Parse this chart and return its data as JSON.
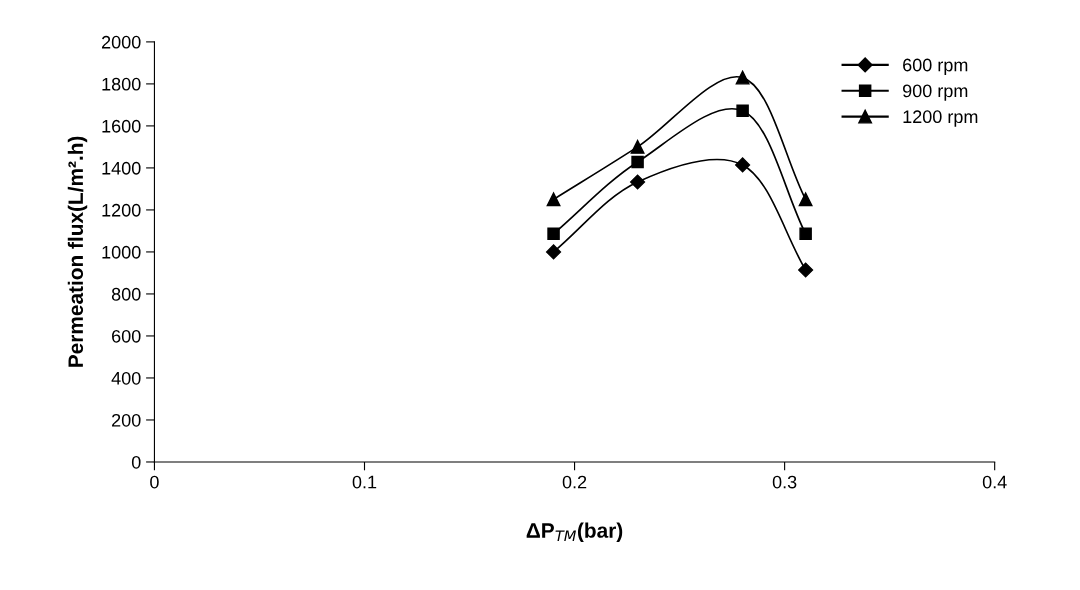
{
  "chart_data": {
    "type": "line",
    "xlabel": "ΔP$_{TM}$(bar)",
    "ylabel": "Permeation flux(L/m².h)",
    "x": [
      0.19,
      0.23,
      0.28,
      0.31
    ],
    "series": [
      {
        "name": "600 rpm",
        "color": "#000000",
        "marker": "diamond",
        "values": [
          1000,
          1333,
          1414,
          914
        ]
      },
      {
        "name": "900 rpm",
        "color": "#000000",
        "marker": "square",
        "values": [
          1086,
          1428,
          1672,
          1086
        ]
      },
      {
        "name": "1200 rpm",
        "color": "#000000",
        "marker": "triangle",
        "values": [
          1250,
          1500,
          1830,
          1250
        ]
      }
    ],
    "xlim": [
      0,
      0.4
    ],
    "xticks": [
      0,
      0.1,
      0.2,
      0.3,
      0.4
    ],
    "ylim": [
      0,
      2000
    ],
    "yticks": [
      0,
      200,
      400,
      600,
      800,
      1000,
      1200,
      1400,
      1600,
      1800,
      2000
    ],
    "grid": false,
    "legend": "top right",
    "line_style": "solid"
  }
}
